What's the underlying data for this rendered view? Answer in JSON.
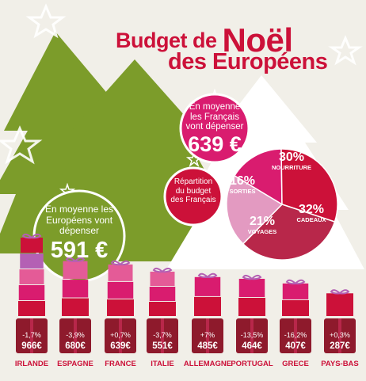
{
  "title": {
    "line1_prefix": "Budget de",
    "line1_big": "Noël",
    "line2": "des Européens"
  },
  "france_bubble": {
    "text": "En moyenne les Français vont dépenser",
    "amount": "639 €"
  },
  "europe_bubble": {
    "text": "En moyenne les Européens vont dépenser",
    "amount": "591 €"
  },
  "pie_caption": "Répartition du budget des Français",
  "colors": {
    "red": "#cc1139",
    "dark_red": "#8e1a2c",
    "green": "#7c9c2a",
    "pink": "#e45b97",
    "light_pink": "#e39ac1",
    "magenta": "#d91c6f",
    "crimson": "#b8274a"
  },
  "chart_data": [
    {
      "type": "pie",
      "categories": [
        "NOURRITURE",
        "CADEAUX",
        "VOYAGES",
        "SORTIES"
      ],
      "values": [
        30,
        32,
        21,
        16
      ],
      "labels": [
        "30%",
        "32%",
        "21%",
        "16%"
      ]
    },
    {
      "type": "bar",
      "categories": [
        "IRLANDE",
        "ESPAGNE",
        "FRANCE",
        "ITALIE",
        "ALLEMAGNE",
        "PORTUGAL",
        "GRECE",
        "PAYS-BAS"
      ],
      "values": [
        966,
        680,
        639,
        551,
        485,
        464,
        407,
        287
      ],
      "value_labels": [
        "966€",
        "680€",
        "639€",
        "551€",
        "485€",
        "464€",
        "407€",
        "287€"
      ],
      "changes": [
        "-1,7%",
        "-3,9%",
        "+0,7%",
        "-3,7%",
        "+7%",
        "-13,5%",
        "-16,2%",
        "+0,3%"
      ]
    }
  ]
}
